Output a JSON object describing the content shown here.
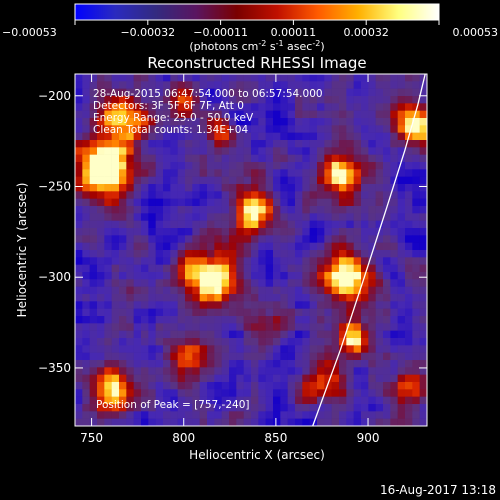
{
  "colorbar": {
    "tick_labels": [
      "-0.00053",
      "-0.00032",
      "-0.00011",
      "0.00011",
      "0.00032",
      "0.00053"
    ],
    "unit_parts": [
      "(photons cm",
      "-2",
      " s",
      "-1",
      " asec",
      "-2",
      ")"
    ],
    "colors": [
      "#0000ff",
      "#2a2abf",
      "#332a80",
      "#5a1560",
      "#7a0000",
      "#c01000",
      "#ff5a00",
      "#ffb000",
      "#ffff80",
      "#ffffff"
    ]
  },
  "title": "Reconstructed RHESSI Image",
  "annotations": {
    "time": "28-Aug-2015 06:47:54.000 to 06:57:54.000",
    "detectors": "Detectors: 3F 5F 6F 7F, Att 0",
    "energy": "Energy Range: 25.0 - 50.0 keV",
    "clean": "Clean    Total counts: 1.34E+04",
    "peak": "Position of Peak = [757,-240]"
  },
  "axes": {
    "xlabel": "Heliocentric X (arcsec)",
    "ylabel": "Heliocentric Y (arcsec)",
    "x_ticks": [
      750,
      800,
      850,
      900
    ],
    "y_ticks": [
      -200,
      -250,
      -300,
      -350
    ],
    "x_tick_labels": [
      "750",
      "800",
      "850",
      "900"
    ],
    "y_tick_labels": [
      "-200",
      "-250",
      "-300",
      "-350"
    ],
    "x_range": [
      741,
      932
    ],
    "y_range": [
      -382,
      -188
    ]
  },
  "image": {
    "grid_cols": 48,
    "grid_rows": 48,
    "sources": [
      {
        "x": 757,
        "y": -240,
        "amp": 1.0,
        "sigma": 12
      },
      {
        "x": 768,
        "y": -212,
        "amp": 0.75,
        "sigma": 9
      },
      {
        "x": 815,
        "y": -300,
        "amp": 0.95,
        "sigma": 11
      },
      {
        "x": 837,
        "y": -263,
        "amp": 0.8,
        "sigma": 9
      },
      {
        "x": 887,
        "y": -300,
        "amp": 0.95,
        "sigma": 11
      },
      {
        "x": 885,
        "y": -245,
        "amp": 0.8,
        "sigma": 9
      },
      {
        "x": 925,
        "y": -215,
        "amp": 0.85,
        "sigma": 9
      },
      {
        "x": 762,
        "y": -362,
        "amp": 0.75,
        "sigma": 10
      },
      {
        "x": 892,
        "y": -332,
        "amp": 0.7,
        "sigma": 8
      },
      {
        "x": 875,
        "y": -358,
        "amp": 0.6,
        "sigma": 8
      },
      {
        "x": 820,
        "y": -222,
        "amp": 0.55,
        "sigma": 7
      },
      {
        "x": 803,
        "y": -345,
        "amp": 0.6,
        "sigma": 8
      },
      {
        "x": 925,
        "y": -360,
        "amp": 0.55,
        "sigma": 7
      },
      {
        "x": 800,
        "y": -200,
        "amp": 0.55,
        "sigma": 7
      },
      {
        "x": 845,
        "y": -325,
        "amp": 0.5,
        "sigma": 7
      }
    ]
  },
  "limb_curve": [
    [
      870,
      -382
    ],
    [
      885,
      -340
    ],
    [
      898,
      -300
    ],
    [
      910,
      -262
    ],
    [
      920,
      -230
    ],
    [
      927,
      -205
    ],
    [
      931,
      -188
    ]
  ],
  "footer": "16-Aug-2017 13:18"
}
